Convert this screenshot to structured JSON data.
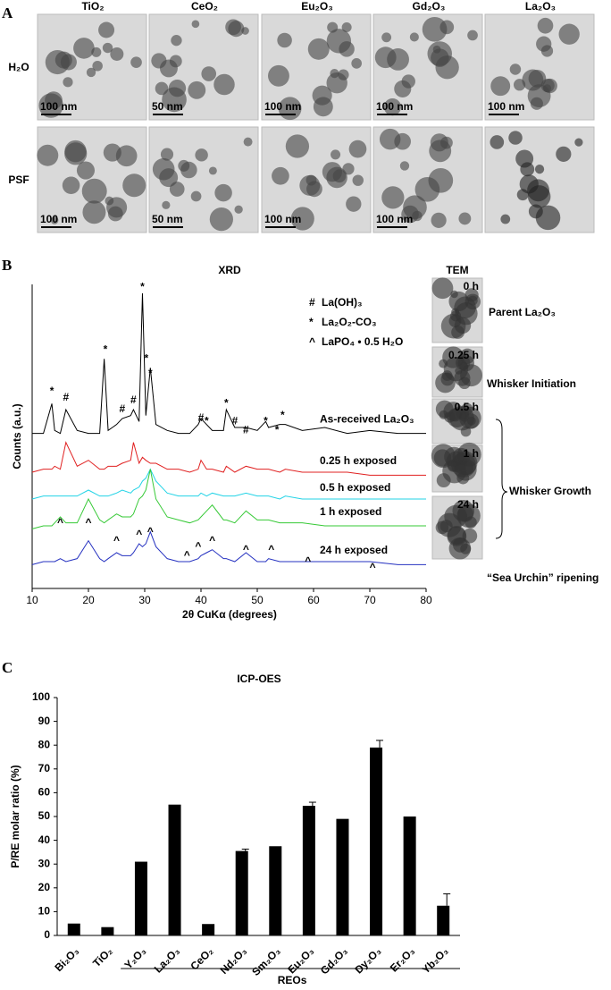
{
  "panel_labels": [
    "A",
    "B",
    "C"
  ],
  "panel_a": {
    "columns": [
      "TiO₂",
      "CeO₂",
      "Eu₂O₃",
      "Gd₂O₃",
      "La₂O₃"
    ],
    "rows": [
      "H₂O",
      "PSF"
    ],
    "scale_bars": [
      [
        "100 nm",
        "50 nm",
        "100 nm",
        "100 nm",
        "100 nm"
      ],
      [
        "100 nm",
        "50 nm",
        "100 nm",
        "100 nm",
        ""
      ]
    ]
  },
  "tem": {
    "title": "TEM",
    "times": [
      "0 h",
      "0.25 h",
      "0.5 h",
      "1 h",
      "24 h"
    ],
    "stages": [
      "Parent La₂O₃",
      "Whisker Initiation",
      "Whisker Growth",
      "“Sea Urchin” ripening"
    ]
  },
  "chart_data": [
    {
      "type": "line",
      "title": "XRD",
      "x_label": "2θ CuKα (degrees)",
      "y_label": "Counts (a.u.)",
      "xlim": [
        10,
        80
      ],
      "xticks": [
        10,
        20,
        30,
        40,
        50,
        60,
        70,
        80
      ],
      "ylim": [
        0,
        102
      ],
      "x": [
        10,
        12,
        13.5,
        14,
        15,
        16,
        18,
        20,
        22,
        22.8,
        23.5,
        25,
        26,
        27.5,
        28,
        29,
        29.6,
        30.2,
        31,
        32,
        34,
        36,
        38,
        39.5,
        40,
        41,
        42,
        44,
        44.5,
        46,
        48,
        50,
        51.5,
        52,
        54,
        55,
        58,
        62,
        66,
        70,
        75,
        80
      ],
      "series": [
        {
          "name": "As-received  La₂O₃",
          "color": "#000000",
          "values": [
            52,
            52,
            62,
            53,
            52,
            60,
            53,
            52,
            52,
            77,
            53,
            55,
            57,
            58,
            60,
            56,
            99,
            58,
            74,
            55,
            53,
            52,
            52,
            55,
            57,
            55,
            53,
            53,
            60,
            54,
            54,
            53,
            56,
            54,
            55,
            55,
            53,
            54,
            52,
            53,
            52,
            52
          ]
        },
        {
          "name": "0.25 h exposed",
          "color": "#e02020",
          "values": [
            39,
            40,
            40,
            41,
            40,
            49,
            41,
            43,
            40,
            40,
            41,
            41,
            42,
            43,
            49,
            42,
            44,
            43,
            42,
            42,
            40,
            40,
            39,
            40,
            43,
            40,
            40,
            39,
            41,
            39,
            41,
            40,
            40,
            40,
            39,
            40,
            39,
            39,
            39,
            38,
            38,
            38
          ]
        },
        {
          "name": "0.5 h exposed",
          "color": "#22d3e6",
          "values": [
            30,
            31,
            31,
            31,
            31,
            31,
            31,
            33,
            31,
            31,
            31,
            32,
            33,
            32,
            33,
            34,
            36,
            37,
            40,
            36,
            32,
            31,
            31,
            31,
            32,
            31,
            32,
            31,
            31,
            31,
            32,
            31,
            31,
            31,
            30,
            31,
            30,
            30,
            30,
            30,
            30,
            30
          ]
        },
        {
          "name": "1 h exposed",
          "color": "#36c936",
          "values": [
            20,
            21,
            21,
            22,
            24,
            22,
            22,
            30,
            23,
            22,
            23,
            25,
            24,
            24,
            25,
            30,
            31,
            33,
            40,
            30,
            24,
            23,
            22,
            23,
            24,
            26,
            28,
            23,
            23,
            22,
            26,
            23,
            23,
            23,
            22,
            22,
            22,
            21,
            21,
            21,
            21,
            21
          ]
        },
        {
          "name": "24 h exposed",
          "color": "#2430c0",
          "values": [
            8,
            9,
            9,
            9,
            10,
            9,
            10,
            16,
            10,
            9,
            10,
            12,
            11,
            11,
            12,
            15,
            14,
            15,
            19,
            14,
            10,
            9,
            9,
            10,
            11,
            12,
            13,
            10,
            10,
            9,
            12,
            9,
            9,
            10,
            9,
            9,
            9,
            9,
            9,
            9,
            8,
            8
          ]
        }
      ],
      "markers": [
        {
          "symbol": "#",
          "label": "La(OH)₃"
        },
        {
          "symbol": "*",
          "label": "La₂O₂-CO₃"
        },
        {
          "symbol": "^",
          "label": "LaPO₄ • 0.5 H₂O"
        }
      ],
      "annotations": [
        {
          "text": "*",
          "x": 13.5,
          "y": 66
        },
        {
          "text": "#",
          "x": 16,
          "y": 64
        },
        {
          "text": "*",
          "x": 23,
          "y": 80
        },
        {
          "text": "#",
          "x": 26,
          "y": 60
        },
        {
          "text": "#",
          "x": 28,
          "y": 63
        },
        {
          "text": "*",
          "x": 29.6,
          "y": 101
        },
        {
          "text": "*",
          "x": 30.3,
          "y": 77
        },
        {
          "text": "*",
          "x": 31,
          "y": 72
        },
        {
          "text": "#",
          "x": 40,
          "y": 57
        },
        {
          "text": "*",
          "x": 41,
          "y": 56
        },
        {
          "text": "*",
          "x": 44.5,
          "y": 62
        },
        {
          "text": "#",
          "x": 46,
          "y": 56
        },
        {
          "text": "#",
          "x": 48,
          "y": 53
        },
        {
          "text": "*",
          "x": 51.5,
          "y": 56
        },
        {
          "text": "*",
          "x": 53.5,
          "y": 53
        },
        {
          "text": "*",
          "x": 54.5,
          "y": 58
        },
        {
          "text": "^",
          "x": 15,
          "y": 22
        },
        {
          "text": "^",
          "x": 20,
          "y": 22
        },
        {
          "text": "^",
          "x": 25,
          "y": 16
        },
        {
          "text": "^",
          "x": 29,
          "y": 18
        },
        {
          "text": "^",
          "x": 31,
          "y": 19
        },
        {
          "text": "^",
          "x": 37.5,
          "y": 11
        },
        {
          "text": "^",
          "x": 39.5,
          "y": 14
        },
        {
          "text": "^",
          "x": 42,
          "y": 16
        },
        {
          "text": "^",
          "x": 48,
          "y": 13
        },
        {
          "text": "^",
          "x": 52.5,
          "y": 13
        },
        {
          "text": "^",
          "x": 59,
          "y": 9
        },
        {
          "text": "^",
          "x": 70.5,
          "y": 7
        }
      ]
    },
    {
      "type": "bar",
      "title": "ICP-OES",
      "y_label": "P/RE molar ratio (%)",
      "group_label": "REOs",
      "categories": [
        "Bi₂O₃",
        "TiO₂",
        "Y₂O₃",
        "La₂O₃",
        "CeO₂",
        "Nd₂O₃",
        "Sm₂O₃",
        "Eu₂O₃",
        "Gd₂O₃",
        "Dy₂O₃",
        "Er₂O₃",
        "Yb₂O₃"
      ],
      "values": [
        5,
        3.5,
        31,
        55,
        4.8,
        35.5,
        37.5,
        54.5,
        49,
        79,
        50,
        12.5
      ],
      "errors": [
        null,
        null,
        null,
        null,
        null,
        0.8,
        null,
        1.5,
        null,
        3,
        null,
        5
      ],
      "color": "#000000",
      "ylim": [
        0,
        100
      ],
      "yticks": [
        0,
        10,
        20,
        30,
        40,
        50,
        60,
        70,
        80,
        90,
        100
      ]
    }
  ]
}
